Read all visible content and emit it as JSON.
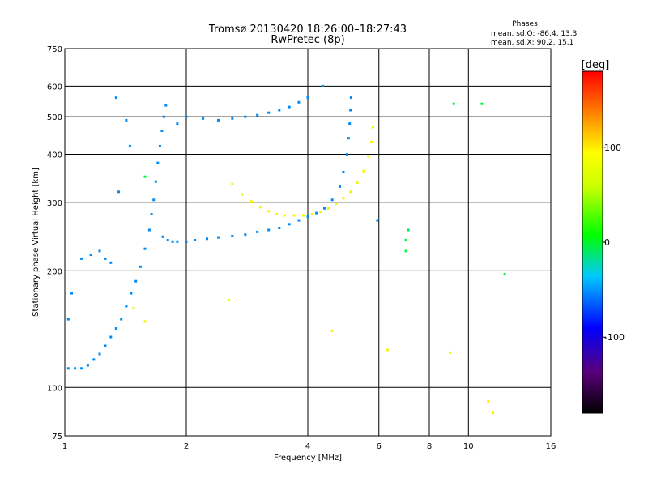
{
  "chart_data": {
    "type": "scatter",
    "title": "Tromsø 20130420 18:26:00–18:27:43",
    "subtitle": "RwPretec (8p)",
    "stats": {
      "header": "Phases",
      "line_o": "mean, sd,O: -86.4, 13.3",
      "line_x": "mean, sd,X:  90.2, 15.1"
    },
    "xlabel": "Frequency [MHz]",
    "ylabel": "Stationary phase Virtual Height [km]",
    "xscale": "log",
    "yscale": "log",
    "xlim": [
      1,
      16
    ],
    "ylim": [
      75,
      750
    ],
    "xticks": [
      1,
      2,
      4,
      6,
      8,
      10,
      16
    ],
    "xtick_labels": [
      "1",
      "2",
      "4",
      "6",
      "8",
      "10",
      "16"
    ],
    "yticks": [
      75,
      100,
      200,
      300,
      400,
      500,
      600,
      750
    ],
    "ytick_labels": [
      "75",
      "100",
      "200",
      "300",
      "400",
      "500",
      "600",
      "750"
    ],
    "grid": true,
    "colorbar": {
      "label": "[deg]",
      "range": [
        -180,
        180
      ],
      "ticks": [
        100,
        0,
        -100
      ],
      "tick_labels": [
        "100",
        "0",
        "-100"
      ]
    },
    "series": [
      {
        "mode": "O",
        "color_value": -95,
        "points": [
          [
            1.02,
            112
          ],
          [
            1.06,
            112
          ],
          [
            1.1,
            112
          ],
          [
            1.14,
            114
          ],
          [
            1.18,
            118
          ],
          [
            1.22,
            122
          ],
          [
            1.26,
            128
          ],
          [
            1.3,
            135
          ],
          [
            1.34,
            142
          ],
          [
            1.38,
            150
          ],
          [
            1.42,
            162
          ],
          [
            1.46,
            175
          ],
          [
            1.5,
            188
          ],
          [
            1.54,
            205
          ],
          [
            1.58,
            228
          ],
          [
            1.62,
            255
          ],
          [
            1.64,
            280
          ],
          [
            1.66,
            305
          ],
          [
            1.68,
            340
          ],
          [
            1.7,
            380
          ],
          [
            1.72,
            420
          ],
          [
            1.74,
            460
          ],
          [
            1.76,
            500
          ],
          [
            1.78,
            535
          ],
          [
            1.75,
            245
          ],
          [
            1.8,
            240
          ],
          [
            1.85,
            238
          ],
          [
            1.9,
            238
          ],
          [
            2.0,
            238
          ],
          [
            2.1,
            240
          ],
          [
            2.25,
            242
          ],
          [
            2.4,
            244
          ],
          [
            2.6,
            246
          ],
          [
            2.8,
            248
          ],
          [
            3.0,
            252
          ],
          [
            3.2,
            255
          ],
          [
            3.4,
            258
          ],
          [
            3.6,
            264
          ],
          [
            3.8,
            270
          ],
          [
            4.0,
            276
          ],
          [
            4.2,
            282
          ],
          [
            4.4,
            290
          ],
          [
            4.6,
            305
          ],
          [
            4.8,
            330
          ],
          [
            4.9,
            360
          ],
          [
            5.0,
            400
          ],
          [
            5.05,
            440
          ],
          [
            5.08,
            480
          ],
          [
            5.1,
            520
          ],
          [
            5.12,
            560
          ],
          [
            1.9,
            480
          ],
          [
            2.0,
            500
          ],
          [
            2.2,
            495
          ],
          [
            2.4,
            490
          ],
          [
            2.6,
            495
          ],
          [
            2.8,
            500
          ],
          [
            3.0,
            505
          ],
          [
            3.2,
            512
          ],
          [
            3.4,
            520
          ],
          [
            3.6,
            530
          ],
          [
            3.8,
            545
          ],
          [
            4.0,
            560
          ],
          [
            1.02,
            150
          ],
          [
            1.04,
            175
          ],
          [
            1.1,
            215
          ],
          [
            1.16,
            220
          ],
          [
            1.22,
            225
          ],
          [
            1.3,
            210
          ],
          [
            1.26,
            215
          ],
          [
            1.34,
            560
          ],
          [
            1.45,
            420
          ],
          [
            1.42,
            490
          ],
          [
            1.36,
            320
          ],
          [
            4.35,
            600
          ],
          [
            5.95,
            270
          ]
        ]
      },
      {
        "mode": "X",
        "color_value": 100,
        "points": [
          [
            2.6,
            335
          ],
          [
            2.75,
            315
          ],
          [
            2.9,
            302
          ],
          [
            3.05,
            292
          ],
          [
            3.2,
            285
          ],
          [
            3.35,
            280
          ],
          [
            3.5,
            278
          ],
          [
            3.7,
            278
          ],
          [
            3.9,
            278
          ],
          [
            4.1,
            280
          ],
          [
            4.3,
            284
          ],
          [
            4.5,
            290
          ],
          [
            4.7,
            298
          ],
          [
            4.9,
            308
          ],
          [
            5.1,
            320
          ],
          [
            5.3,
            338
          ],
          [
            5.5,
            362
          ],
          [
            5.65,
            395
          ],
          [
            5.75,
            430
          ],
          [
            5.8,
            470
          ],
          [
            2.55,
            168
          ],
          [
            1.48,
            160
          ],
          [
            1.58,
            148
          ],
          [
            4.6,
            140
          ],
          [
            6.3,
            125
          ],
          [
            9.0,
            123
          ],
          [
            11.2,
            92
          ],
          [
            11.5,
            86
          ]
        ]
      },
      {
        "mode": "other",
        "color_value": 0,
        "points": [
          [
            7.0,
            240
          ],
          [
            7.0,
            225
          ],
          [
            7.1,
            255
          ],
          [
            9.2,
            540
          ],
          [
            10.8,
            540
          ],
          [
            12.3,
            196
          ],
          [
            1.58,
            350
          ]
        ]
      }
    ]
  }
}
